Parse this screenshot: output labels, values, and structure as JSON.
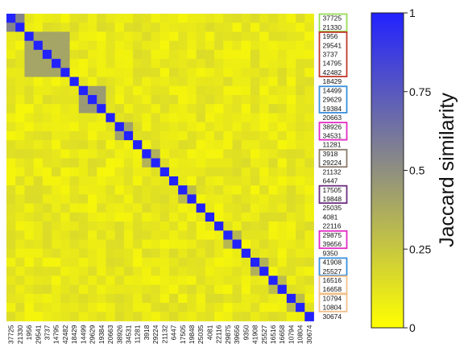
{
  "chart_data": {
    "type": "heatmap",
    "labels": [
      "37725",
      "21330",
      "1956",
      "29541",
      "3737",
      "14795",
      "42482",
      "18429",
      "14499",
      "29629",
      "19384",
      "20663",
      "38926",
      "34531",
      "11281",
      "3918",
      "29224",
      "21132",
      "6447",
      "17505",
      "19848",
      "25035",
      "4081",
      "22116",
      "29875",
      "39656",
      "9350",
      "41908",
      "25527",
      "16516",
      "16658",
      "10794",
      "10804",
      "30674"
    ],
    "groups": [
      {
        "start": 0,
        "end": 1,
        "color": "#99dd55"
      },
      {
        "start": 2,
        "end": 6,
        "color": "#c0392b"
      },
      {
        "start": 8,
        "end": 10,
        "color": "#3a8fd9"
      },
      {
        "start": 12,
        "end": 13,
        "color": "#e22bc4"
      },
      {
        "start": 15,
        "end": 16,
        "color": "#8b7b6b"
      },
      {
        "start": 19,
        "end": 20,
        "color": "#6b2f80"
      },
      {
        "start": 24,
        "end": 25,
        "color": "#e22bc4"
      },
      {
        "start": 27,
        "end": 28,
        "color": "#3a8fd9"
      },
      {
        "start": 29,
        "end": 30,
        "color": "#f2c08a"
      },
      {
        "start": 31,
        "end": 32,
        "color": "#f2c08a"
      }
    ],
    "blocks": [
      {
        "start": 0,
        "end": 1,
        "value": 0.55
      },
      {
        "start": 2,
        "end": 6,
        "value": 0.4
      },
      {
        "start": 8,
        "end": 10,
        "value": 0.45
      },
      {
        "start": 12,
        "end": 13,
        "value": 0.42
      },
      {
        "start": 15,
        "end": 16,
        "value": 0.35
      },
      {
        "start": 19,
        "end": 20,
        "value": 0.3
      },
      {
        "start": 24,
        "end": 25,
        "value": 0.32
      },
      {
        "start": 27,
        "end": 28,
        "value": 0.35
      },
      {
        "start": 29,
        "end": 30,
        "value": 0.3
      },
      {
        "start": 31,
        "end": 32,
        "value": 0.3
      }
    ],
    "background_value": 0.1,
    "diagonal_value": 1,
    "colorbar": {
      "label": "Jaccard similarity",
      "min": 0,
      "max": 1,
      "ticks": [
        "0",
        "0.25",
        "0.5",
        "0.75",
        "1"
      ],
      "low_color": "#ffff00",
      "high_color": "#2222ff"
    }
  }
}
